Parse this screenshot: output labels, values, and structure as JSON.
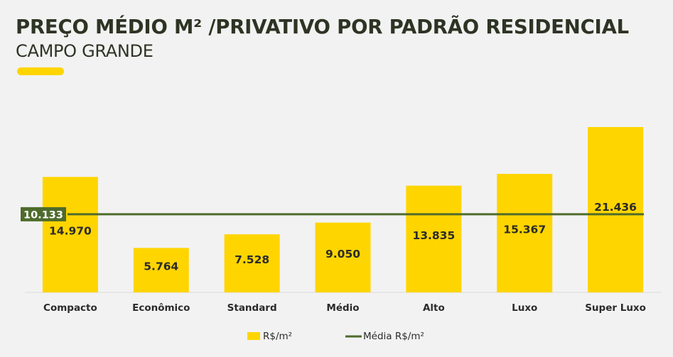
{
  "title": "PREÇO MÉDIO M²  /PRIVATIVO POR PADRÃO RESIDENCIAL",
  "subtitle": "CAMPO GRANDE",
  "colors": {
    "bar": "#ffd500",
    "line": "#4e6b2c",
    "text": "#2e3424",
    "accent": "#ffd500",
    "avg_label_bg": "#4e6b2c",
    "avg_label_text": "#ffffff"
  },
  "chart_data": {
    "type": "bar",
    "categories": [
      "Compacto",
      "Econômico",
      "Standard",
      "Médio",
      "Alto",
      "Luxo",
      "Super Luxo"
    ],
    "series": [
      {
        "name": "R$/m²",
        "type": "bar",
        "values": [
          14970,
          5764,
          7528,
          9050,
          13835,
          15367,
          21436
        ],
        "labels": [
          "14.970",
          "5.764",
          "7.528",
          "9.050",
          "13.835",
          "15.367",
          "21.436"
        ]
      },
      {
        "name": "Média R$/m²",
        "type": "line",
        "values": [
          10133,
          10133,
          10133,
          10133,
          10133,
          10133,
          10133
        ],
        "label": "10.133"
      }
    ],
    "ylim": [
      0,
      24000
    ],
    "legend": "bottom-center",
    "grid": false
  }
}
